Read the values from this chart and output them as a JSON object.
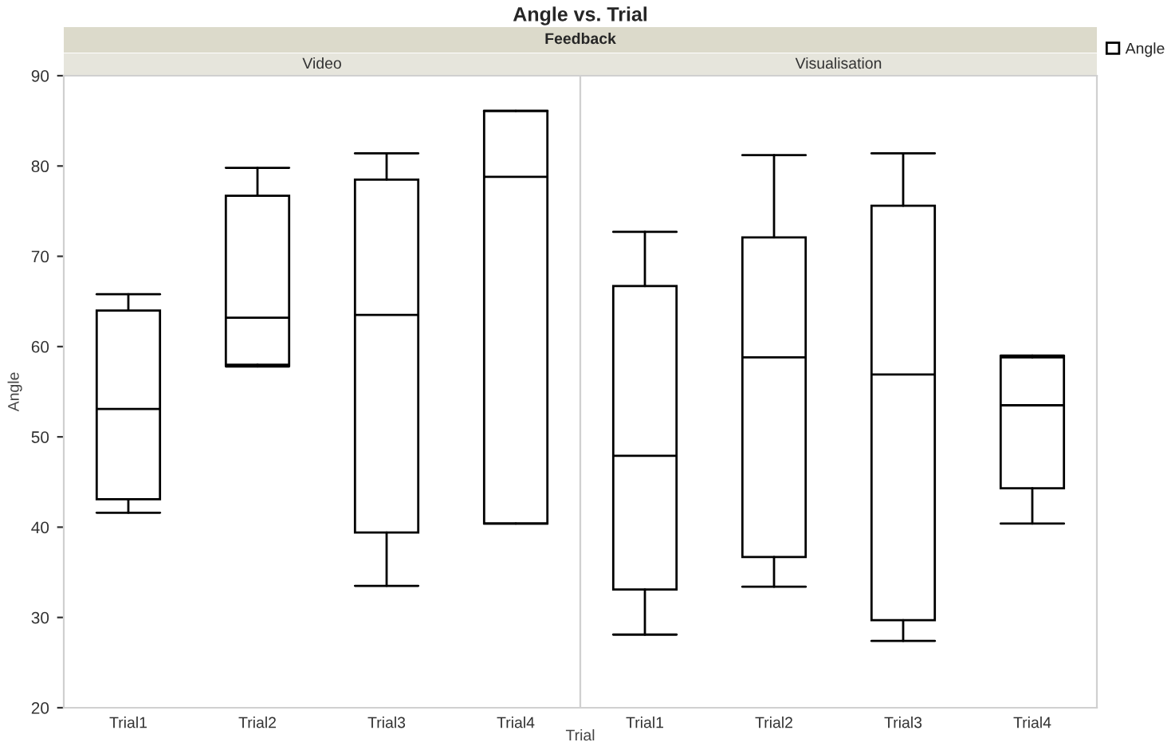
{
  "chart_data": [
    {
      "type": "other",
      "title": "Angle vs. Trial",
      "subtitle": "Feedback",
      "xlabel": "Trial"
    },
    {
      "type": "box",
      "title": "Video",
      "ylabel": "Angle",
      "categories": [
        "Trial1",
        "Trial2",
        "Trial3",
        "Trial4"
      ],
      "ylim": [
        20,
        90
      ],
      "yticks": [
        20,
        30,
        40,
        50,
        60,
        70,
        80,
        90
      ],
      "grid": false,
      "legend": false,
      "series": [
        {
          "color": "#000000",
          "boxes": [
            {
              "low": 41.6,
              "q1": 43.1,
              "median": 53.1,
              "q3": 64.0,
              "high": 65.8
            },
            {
              "low": 57.8,
              "q1": 58.0,
              "median": 63.2,
              "q3": 76.7,
              "high": 79.8
            },
            {
              "low": 33.5,
              "q1": 39.4,
              "median": 63.5,
              "q3": 78.5,
              "high": 81.4
            },
            {
              "low": 40.4,
              "q1": 40.4,
              "median": 78.8,
              "q3": 86.1,
              "high": 86.1
            }
          ]
        }
      ]
    },
    {
      "type": "box",
      "title": "Visualisation",
      "categories": [
        "Trial1",
        "Trial2",
        "Trial3",
        "Trial4"
      ],
      "ylim": [
        20,
        90
      ],
      "yticks": [
        20,
        30,
        40,
        50,
        60,
        70,
        80,
        90
      ],
      "tick_labels": "x",
      "grid": false,
      "legend": "top right",
      "series": [
        {
          "name": "Angle",
          "color": "#000000",
          "boxes": [
            {
              "low": 28.1,
              "q1": 33.1,
              "median": 47.9,
              "q3": 66.7,
              "high": 72.7
            },
            {
              "low": 33.4,
              "q1": 36.7,
              "median": 58.8,
              "q3": 72.1,
              "high": 81.2
            },
            {
              "low": 27.4,
              "q1": 29.7,
              "median": 56.9,
              "q3": 75.6,
              "high": 81.4
            },
            {
              "low": 40.4,
              "q1": 44.3,
              "median": 53.5,
              "q3": 58.8,
              "high": 59.0
            }
          ]
        }
      ]
    }
  ]
}
